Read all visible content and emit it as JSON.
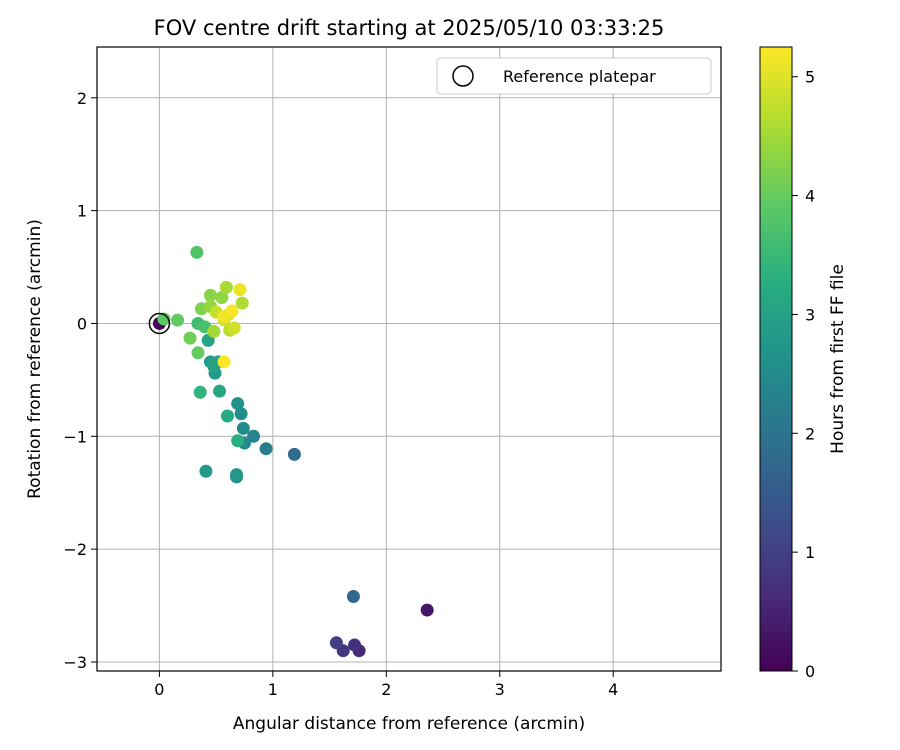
{
  "chart_data": {
    "type": "scatter",
    "title": "FOV centre drift starting at 2025/05/10 03:33:25",
    "xlabel": "Angular distance from reference (arcmin)",
    "ylabel": "Rotation from reference (arcmin)",
    "colorbar_label": "Hours from first FF file",
    "xlim": [
      -0.55,
      4.95
    ],
    "ylim": [
      -3.08,
      2.45
    ],
    "x_ticks": [
      0,
      1,
      2,
      3,
      4
    ],
    "y_ticks": [
      -3,
      -2,
      -1,
      0,
      1,
      2
    ],
    "colorbar_range": [
      0,
      5.25
    ],
    "colorbar_ticks": [
      0,
      1,
      2,
      3,
      4,
      5
    ],
    "colormap": "viridis",
    "grid": true,
    "legend": {
      "position": "top-right",
      "label": "Reference platepar"
    },
    "reference_point": {
      "x": 0,
      "y": 0
    },
    "points": [
      {
        "x": 0.0,
        "y": 0.0,
        "t": 0.05
      },
      {
        "x": 2.36,
        "y": -2.54,
        "t": 0.3
      },
      {
        "x": 1.76,
        "y": -2.9,
        "t": 0.6
      },
      {
        "x": 1.72,
        "y": -2.85,
        "t": 0.75
      },
      {
        "x": 1.62,
        "y": -2.9,
        "t": 0.85
      },
      {
        "x": 1.56,
        "y": -2.83,
        "t": 0.95
      },
      {
        "x": 1.71,
        "y": -2.42,
        "t": 1.75
      },
      {
        "x": 1.19,
        "y": -1.16,
        "t": 1.85
      },
      {
        "x": 0.94,
        "y": -1.11,
        "t": 2.2
      },
      {
        "x": 0.83,
        "y": -1.0,
        "t": 2.3
      },
      {
        "x": 0.75,
        "y": -1.06,
        "t": 2.45
      },
      {
        "x": 0.74,
        "y": -0.93,
        "t": 2.5
      },
      {
        "x": 0.72,
        "y": -0.8,
        "t": 2.6
      },
      {
        "x": 0.69,
        "y": -0.71,
        "t": 2.65
      },
      {
        "x": 0.68,
        "y": -1.36,
        "t": 2.7
      },
      {
        "x": 0.68,
        "y": -1.34,
        "t": 2.75
      },
      {
        "x": 0.41,
        "y": -1.31,
        "t": 2.8
      },
      {
        "x": 0.49,
        "y": -0.44,
        "t": 2.85
      },
      {
        "x": 0.45,
        "y": -0.34,
        "t": 2.9
      },
      {
        "x": 0.52,
        "y": -0.34,
        "t": 2.95
      },
      {
        "x": 0.48,
        "y": -0.38,
        "t": 3.0
      },
      {
        "x": 0.43,
        "y": -0.15,
        "t": 3.05
      },
      {
        "x": 0.53,
        "y": -0.6,
        "t": 3.1
      },
      {
        "x": 0.6,
        "y": -0.82,
        "t": 3.2
      },
      {
        "x": 0.69,
        "y": -1.04,
        "t": 3.3
      },
      {
        "x": 0.36,
        "y": -0.61,
        "t": 3.4
      },
      {
        "x": 0.34,
        "y": 0.0,
        "t": 3.6
      },
      {
        "x": 0.4,
        "y": -0.03,
        "t": 3.7
      },
      {
        "x": 0.33,
        "y": 0.63,
        "t": 3.8
      },
      {
        "x": 0.04,
        "y": 0.04,
        "t": 3.9
      },
      {
        "x": 0.16,
        "y": 0.03,
        "t": 3.95
      },
      {
        "x": 0.34,
        "y": -0.26,
        "t": 4.0
      },
      {
        "x": 0.27,
        "y": -0.13,
        "t": 4.1
      },
      {
        "x": 0.37,
        "y": 0.13,
        "t": 4.2
      },
      {
        "x": 0.45,
        "y": 0.25,
        "t": 4.3
      },
      {
        "x": 0.55,
        "y": 0.23,
        "t": 4.35
      },
      {
        "x": 0.45,
        "y": 0.15,
        "t": 4.4
      },
      {
        "x": 0.48,
        "y": -0.07,
        "t": 4.5
      },
      {
        "x": 0.59,
        "y": 0.32,
        "t": 4.55
      },
      {
        "x": 0.73,
        "y": 0.18,
        "t": 4.6
      },
      {
        "x": 0.62,
        "y": -0.06,
        "t": 4.7
      },
      {
        "x": 0.5,
        "y": 0.1,
        "t": 4.8
      },
      {
        "x": 0.57,
        "y": 0.03,
        "t": 4.85
      },
      {
        "x": 0.66,
        "y": -0.04,
        "t": 4.9
      },
      {
        "x": 0.61,
        "y": 0.08,
        "t": 4.95
      },
      {
        "x": 0.71,
        "y": 0.3,
        "t": 5.1
      },
      {
        "x": 0.57,
        "y": 0.06,
        "t": 5.15
      },
      {
        "x": 0.64,
        "y": 0.11,
        "t": 5.2
      },
      {
        "x": 0.57,
        "y": -0.34,
        "t": 5.25
      }
    ]
  }
}
